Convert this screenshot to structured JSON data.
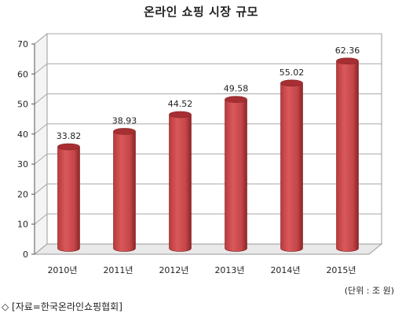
{
  "chart_data": {
    "type": "bar",
    "title": "온라인 쇼핑 시장 규모",
    "categories": [
      "2010년",
      "2011년",
      "2012년",
      "2013년",
      "2014년",
      "2015년"
    ],
    "values": [
      33.82,
      38.93,
      44.52,
      49.58,
      55.02,
      62.36
    ],
    "data_labels": [
      "33.82",
      "38.93",
      "44.52",
      "49.58",
      "55.02",
      "62.36"
    ],
    "ylim": [
      0,
      70
    ],
    "yticks": [
      0,
      10,
      20,
      30,
      40,
      50,
      60,
      70
    ],
    "grid": true,
    "style": "3d-cylinder",
    "bar_color": "#c9474a",
    "bar_dark_color": "#8e2426",
    "bar_top_color": "#a52f32"
  },
  "unit_note": "(단위 : 조 원)",
  "source_note": "◇ [자료=한국온라인쇼핑협회]"
}
